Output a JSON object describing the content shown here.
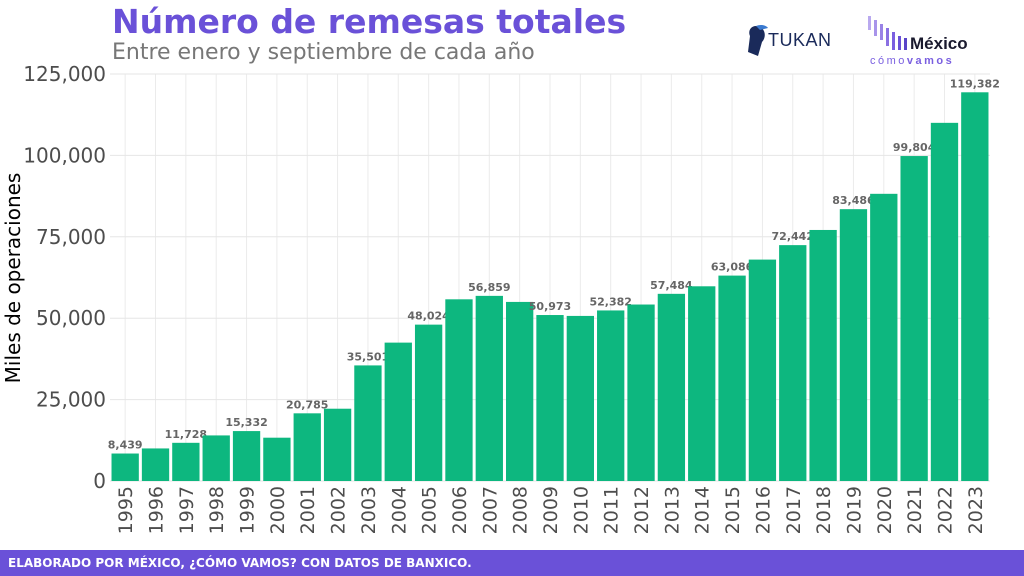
{
  "header": {
    "title": "Número de remesas totales",
    "subtitle": "Entre enero y septiembre de cada año"
  },
  "logos": {
    "tukan": "TUKAN",
    "mexico": "México",
    "como": "cómo",
    "vamos": "vamos"
  },
  "footer": {
    "text": "ELABORADO POR MÉXICO, ¿CÓMO VAMOS? CON DATOS DE BANXICO."
  },
  "colors": {
    "bar": "#0db77f",
    "title": "#6a51d8",
    "footer": "#6a51d8",
    "data_label": "#666666"
  },
  "chart_data": {
    "type": "bar",
    "title": "Número de remesas totales",
    "subtitle": "Entre enero y septiembre de cada año",
    "xlabel": "",
    "ylabel": "Miles de operaciones",
    "ylim": [
      0,
      125000
    ],
    "yticks": [
      0,
      25000,
      50000,
      75000,
      100000,
      125000
    ],
    "ytick_labels": [
      "0",
      "25,000",
      "50,000",
      "75,000",
      "100,000",
      "125,000"
    ],
    "grid": true,
    "categories": [
      "1995",
      "1996",
      "1997",
      "1998",
      "1999",
      "2000",
      "2001",
      "2002",
      "2003",
      "2004",
      "2005",
      "2006",
      "2007",
      "2008",
      "2009",
      "2010",
      "2011",
      "2012",
      "2013",
      "2014",
      "2015",
      "2016",
      "2017",
      "2018",
      "2019",
      "2020",
      "2021",
      "2022",
      "2023"
    ],
    "values": [
      8439,
      10000,
      11728,
      14000,
      15332,
      13300,
      20785,
      22200,
      35501,
      42500,
      48024,
      55800,
      56859,
      55000,
      50973,
      50700,
      52382,
      54200,
      57484,
      59800,
      63086,
      68000,
      72442,
      77100,
      83486,
      88200,
      99804,
      110000,
      119382
    ],
    "data_labels": [
      "8,439",
      "",
      "11,728",
      "",
      "15,332",
      "",
      "20,785",
      "",
      "35,501",
      "",
      "48,024",
      "",
      "56,859",
      "",
      "50,973",
      "",
      "52,382",
      "",
      "57,484",
      "",
      "63,086",
      "",
      "72,442",
      "",
      "83,486",
      "",
      "99,804",
      "",
      "119,382"
    ]
  }
}
